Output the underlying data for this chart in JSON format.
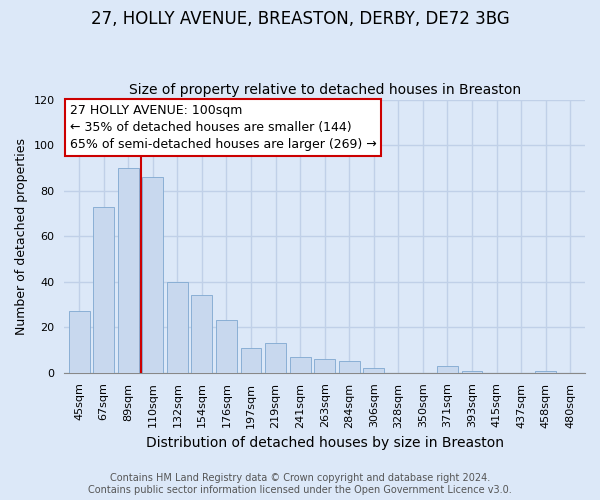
{
  "title": "27, HOLLY AVENUE, BREASTON, DERBY, DE72 3BG",
  "subtitle": "Size of property relative to detached houses in Breaston",
  "xlabel": "Distribution of detached houses by size in Breaston",
  "ylabel": "Number of detached properties",
  "footer_line1": "Contains HM Land Registry data © Crown copyright and database right 2024.",
  "footer_line2": "Contains public sector information licensed under the Open Government Licence v3.0.",
  "bar_labels": [
    "45sqm",
    "67sqm",
    "89sqm",
    "110sqm",
    "132sqm",
    "154sqm",
    "176sqm",
    "197sqm",
    "219sqm",
    "241sqm",
    "263sqm",
    "284sqm",
    "306sqm",
    "328sqm",
    "350sqm",
    "371sqm",
    "393sqm",
    "415sqm",
    "437sqm",
    "458sqm",
    "480sqm"
  ],
  "bar_values": [
    27,
    73,
    90,
    86,
    40,
    34,
    23,
    11,
    13,
    7,
    6,
    5,
    2,
    0,
    0,
    3,
    1,
    0,
    0,
    1,
    0
  ],
  "bar_color": "#c8d8ee",
  "bar_edge_color": "#7fa8d0",
  "vline_color": "#cc0000",
  "vline_pos": 2.5,
  "annotation_text": "27 HOLLY AVENUE: 100sqm\n← 35% of detached houses are smaller (144)\n65% of semi-detached houses are larger (269) →",
  "annotation_box_facecolor": "#ffffff",
  "annotation_box_edgecolor": "#cc0000",
  "ylim": [
    0,
    120
  ],
  "yticks": [
    0,
    20,
    40,
    60,
    80,
    100,
    120
  ],
  "background_color": "#dce8f8",
  "plot_bg_color": "#dce8f8",
  "grid_color": "#c0d0e8",
  "title_fontsize": 12,
  "subtitle_fontsize": 10,
  "xlabel_fontsize": 10,
  "ylabel_fontsize": 9,
  "tick_fontsize": 8,
  "annotation_fontsize": 9,
  "footer_fontsize": 7
}
